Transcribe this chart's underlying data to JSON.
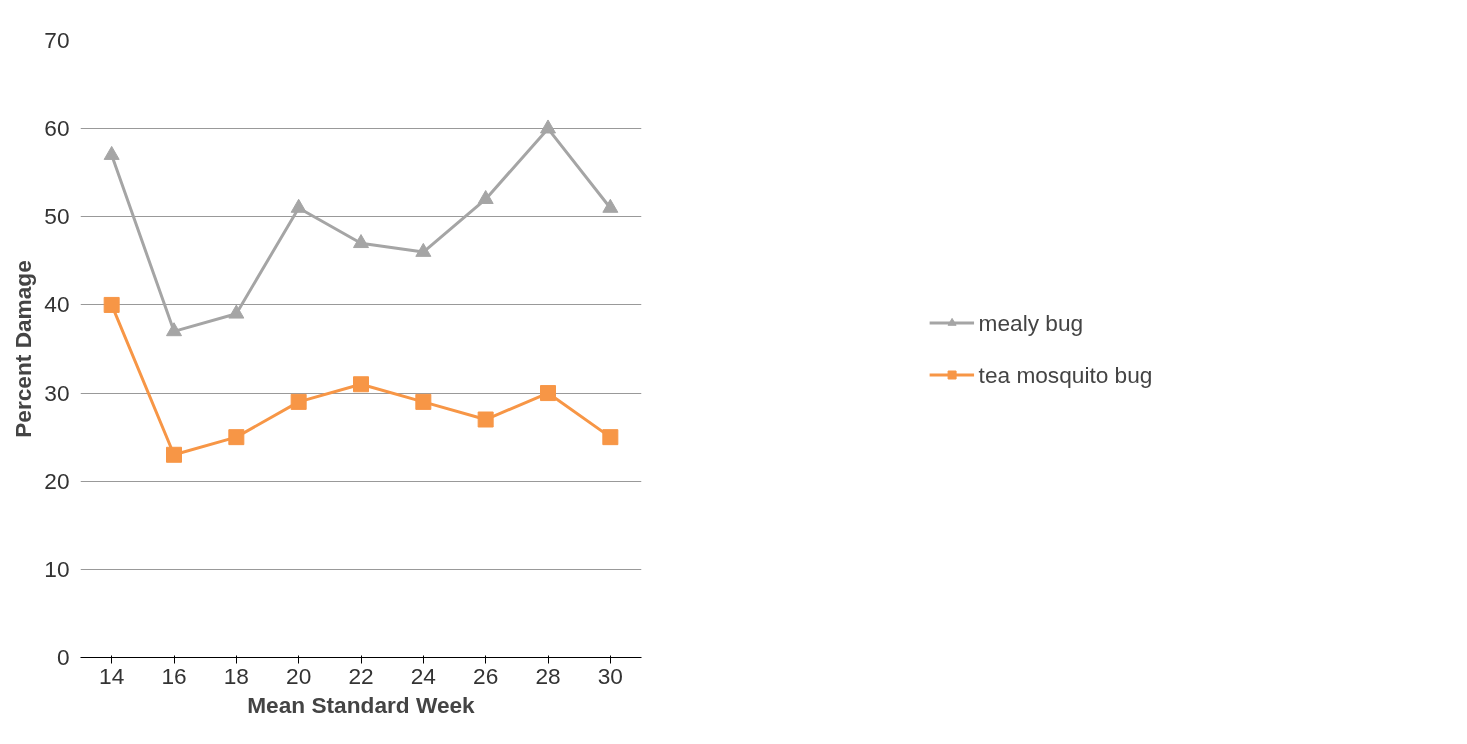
{
  "chart_data": {
    "type": "line",
    "xlabel": "Mean Standard Week",
    "ylabel": "Percent Damage",
    "categories": [
      "14",
      "16",
      "18",
      "20",
      "22",
      "24",
      "26",
      "28",
      "30"
    ],
    "ylim": [
      0,
      70
    ],
    "yticks": [
      0,
      10,
      20,
      30,
      40,
      50,
      60,
      70
    ],
    "grid": "y",
    "legend": "right",
    "line_style": "solid",
    "series": [
      {
        "name": "mealy bug",
        "color": "#a5a5a5",
        "marker": "triangle",
        "values": [
          57,
          37,
          39,
          51,
          47,
          46,
          52,
          60,
          51
        ]
      },
      {
        "name": "tea mosquito bug",
        "color": "#f79646",
        "marker": "square",
        "values": [
          40,
          23,
          25,
          29,
          31,
          29,
          27,
          30,
          25
        ]
      }
    ]
  }
}
